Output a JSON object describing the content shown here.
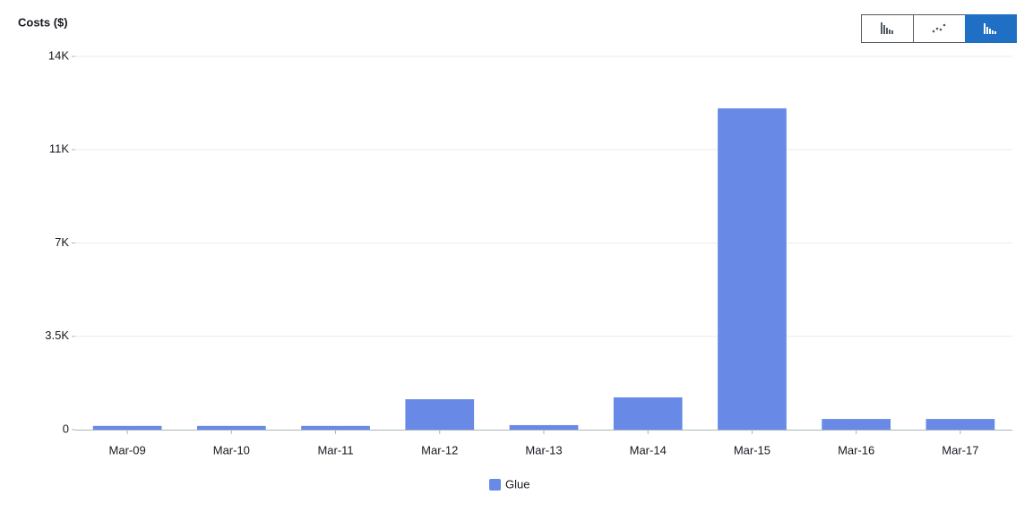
{
  "chart_data": {
    "type": "bar",
    "y_label": "Costs ($)",
    "categories": [
      "Mar-09",
      "Mar-10",
      "Mar-11",
      "Mar-12",
      "Mar-13",
      "Mar-14",
      "Mar-15",
      "Mar-16",
      "Mar-17"
    ],
    "series": [
      {
        "name": "Glue",
        "color": "#6889e6",
        "values": [
          140,
          140,
          140,
          1140,
          170,
          1210,
          12050,
          400,
          400
        ]
      }
    ],
    "ylim": [
      0,
      14000
    ],
    "yticks": [
      0,
      {
        "value": 3500,
        "label": "3.5K"
      },
      {
        "value": 7000,
        "label": "7K"
      },
      {
        "value": 10500,
        "label": "11K"
      },
      {
        "value": 14000,
        "label": "14K"
      }
    ],
    "grid": true
  }
}
